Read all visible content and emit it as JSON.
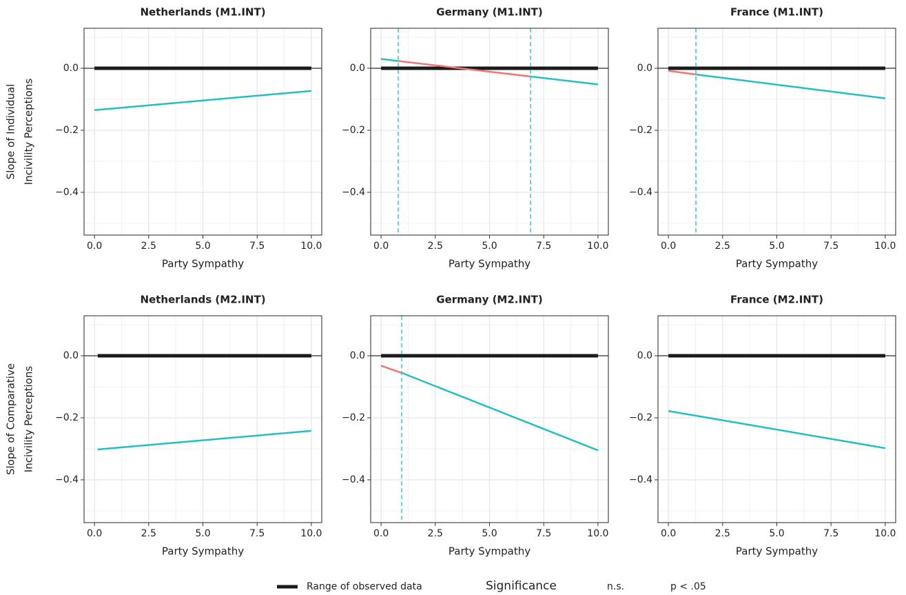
{
  "chart_data": [
    {
      "type": "line",
      "title": "Netherlands (M1.INT)",
      "x_label": "Party Sympathy",
      "y_label": [
        "Slope of Individual",
        "Incivility Perceptions"
      ],
      "xlim": [
        -0.48,
        10.48
      ],
      "ylim": [
        -0.538,
        0.129
      ],
      "xticks": [
        {
          "value": 0,
          "label": "0.0"
        },
        2.5,
        {
          "value": 5,
          "label": "5.0"
        },
        7.5,
        {
          "value": 10,
          "label": "10.0"
        }
      ],
      "yticks": [
        {
          "value": 0,
          "label": "0.0"
        },
        {
          "value": -0.2,
          "label": "−0.2"
        },
        {
          "value": -0.4,
          "label": "−0.4"
        }
      ],
      "hline": 0,
      "observed": {
        "color": "#1a1a1a",
        "x": [
          0,
          10
        ],
        "values": [
          0,
          0
        ]
      },
      "series": [
        {
          "color": "#1fbfc3",
          "x": [
            0,
            10
          ],
          "values": [
            -0.135,
            -0.073
          ]
        }
      ],
      "vlines": []
    },
    {
      "type": "line",
      "title": "Germany (M1.INT)",
      "x_label": "Party Sympathy",
      "xlim": [
        -0.48,
        10.48
      ],
      "ylim": [
        -0.538,
        0.129
      ],
      "xticks": [
        {
          "value": 0,
          "label": "0.0"
        },
        2.5,
        {
          "value": 5,
          "label": "5.0"
        },
        7.5,
        {
          "value": 10,
          "label": "10.0"
        }
      ],
      "yticks": [
        {
          "value": 0,
          "label": "0.0"
        },
        {
          "value": -0.2,
          "label": "−0.2"
        },
        {
          "value": -0.4,
          "label": "−0.4"
        }
      ],
      "hline": 0,
      "observed": {
        "color": "#1a1a1a",
        "x": [
          0,
          10
        ],
        "values": [
          0,
          0
        ]
      },
      "series": [
        {
          "color": "#1fbfc3",
          "x": [
            0,
            0.79
          ],
          "values": [
            0.03,
            0.0235
          ]
        },
        {
          "color": "#f07470",
          "x": [
            0.79,
            6.89
          ],
          "values": [
            0.0235,
            -0.0265
          ]
        },
        {
          "color": "#1fbfc3",
          "x": [
            6.89,
            10
          ],
          "values": [
            -0.0265,
            -0.052
          ]
        }
      ],
      "vlines": [
        0.79,
        6.89
      ]
    },
    {
      "type": "line",
      "title": "France (M1.INT)",
      "x_label": "Party Sympathy",
      "xlim": [
        -0.48,
        10.48
      ],
      "ylim": [
        -0.538,
        0.129
      ],
      "xticks": [
        {
          "value": 0,
          "label": "0.0"
        },
        2.5,
        {
          "value": 5,
          "label": "5.0"
        },
        7.5,
        {
          "value": 10,
          "label": "10.0"
        }
      ],
      "yticks": [
        {
          "value": 0,
          "label": "0.0"
        },
        {
          "value": -0.2,
          "label": "−0.2"
        },
        {
          "value": -0.4,
          "label": "−0.4"
        }
      ],
      "hline": 0,
      "observed": {
        "color": "#1a1a1a",
        "x": [
          0,
          10
        ],
        "values": [
          0,
          0
        ]
      },
      "series": [
        {
          "color": "#f07470",
          "x": [
            0,
            1.27
          ],
          "values": [
            -0.008,
            -0.02
          ]
        },
        {
          "color": "#1fbfc3",
          "x": [
            1.27,
            10
          ],
          "values": [
            -0.02,
            -0.097
          ]
        }
      ],
      "vlines": [
        1.27
      ]
    },
    {
      "type": "line",
      "title": "Netherlands (M2.INT)",
      "x_label": "Party Sympathy",
      "y_label": [
        "Slope of Comparative",
        "Incivility Perceptions"
      ],
      "xlim": [
        -0.48,
        10.48
      ],
      "ylim": [
        -0.538,
        0.129
      ],
      "xticks": [
        {
          "value": 0,
          "label": "0.0"
        },
        2.5,
        {
          "value": 5,
          "label": "5.0"
        },
        7.5,
        {
          "value": 10,
          "label": "10.0"
        }
      ],
      "yticks": [
        {
          "value": 0,
          "label": "0.0"
        },
        {
          "value": -0.2,
          "label": "−0.2"
        },
        {
          "value": -0.4,
          "label": "−0.4"
        }
      ],
      "hline": 0,
      "observed": {
        "color": "#1a1a1a",
        "x": [
          0.15,
          10
        ],
        "values": [
          0,
          0
        ]
      },
      "series": [
        {
          "color": "#1fbfc3",
          "x": [
            0.15,
            10
          ],
          "values": [
            -0.302,
            -0.242
          ]
        }
      ],
      "vlines": []
    },
    {
      "type": "line",
      "title": "Germany (M2.INT)",
      "x_label": "Party Sympathy",
      "xlim": [
        -0.48,
        10.48
      ],
      "ylim": [
        -0.538,
        0.129
      ],
      "xticks": [
        {
          "value": 0,
          "label": "0.0"
        },
        2.5,
        {
          "value": 5,
          "label": "5.0"
        },
        7.5,
        {
          "value": 10,
          "label": "10.0"
        }
      ],
      "yticks": [
        {
          "value": 0,
          "label": "0.0"
        },
        {
          "value": -0.2,
          "label": "−0.2"
        },
        {
          "value": -0.4,
          "label": "−0.4"
        }
      ],
      "hline": 0,
      "observed": {
        "color": "#1a1a1a",
        "x": [
          0,
          10
        ],
        "values": [
          0,
          0
        ]
      },
      "series": [
        {
          "color": "#f07470",
          "x": [
            0,
            0.95
          ],
          "values": [
            -0.032,
            -0.055
          ]
        },
        {
          "color": "#1fbfc3",
          "x": [
            0.95,
            10
          ],
          "values": [
            -0.055,
            -0.305
          ]
        }
      ],
      "vlines": [
        0.95
      ]
    },
    {
      "type": "line",
      "title": "France (M2.INT)",
      "x_label": "Party Sympathy",
      "xlim": [
        -0.48,
        10.48
      ],
      "ylim": [
        -0.538,
        0.129
      ],
      "xticks": [
        {
          "value": 0,
          "label": "0.0"
        },
        2.5,
        {
          "value": 5,
          "label": "5.0"
        },
        7.5,
        {
          "value": 10,
          "label": "10.0"
        }
      ],
      "yticks": [
        {
          "value": 0,
          "label": "0.0"
        },
        {
          "value": -0.2,
          "label": "−0.2"
        },
        {
          "value": -0.4,
          "label": "−0.4"
        }
      ],
      "hline": 0,
      "observed": {
        "color": "#1a1a1a",
        "x": [
          0,
          10
        ],
        "values": [
          0,
          0
        ]
      },
      "series": [
        {
          "color": "#1fbfc3",
          "x": [
            0,
            10
          ],
          "values": [
            -0.178,
            -0.298
          ]
        }
      ],
      "vlines": []
    }
  ],
  "legend": {
    "range_label": "Range of observed data",
    "range_color": "#1a1a1a",
    "title": "Significance",
    "items": [
      "n.s.",
      "p < .05"
    ]
  }
}
